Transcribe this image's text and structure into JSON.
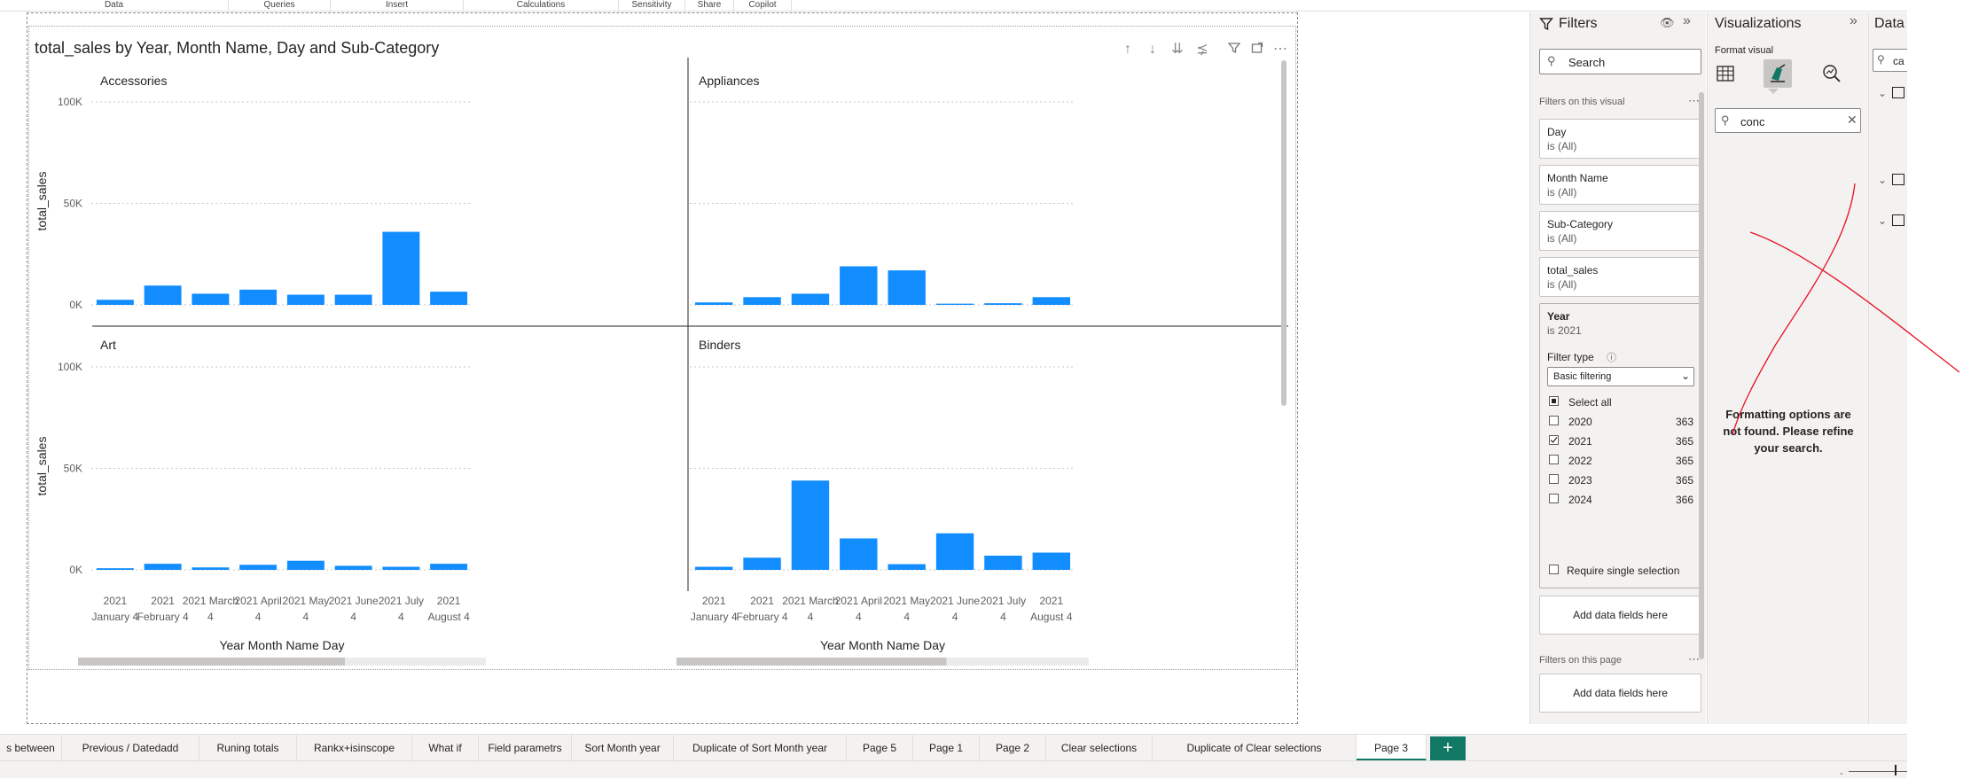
{
  "ribbon": {
    "groups": [
      "Data",
      "Queries",
      "Insert",
      "Calculations",
      "Sensitivity",
      "Share",
      "Copilot"
    ]
  },
  "visual": {
    "title": "total_sales by Year, Month Name, Day and Sub-Category",
    "icons": [
      "arrow-up-icon",
      "arrow-down-icon",
      "double-arrow-down-icon",
      "expand-hierarchy-icon",
      "filter-icon",
      "focus-mode-icon",
      "more-options-icon"
    ]
  },
  "chart_data": {
    "type": "bar",
    "title": "total_sales by Year, Month Name, Day and Sub-Category",
    "xlabel": "Year Month Name Day",
    "ylabel": "total_sales",
    "ylim": [
      0,
      100000
    ],
    "yticks": [
      "100K",
      "50K",
      "0K"
    ],
    "grid": true,
    "categories": [
      "2021 January 4",
      "2021 February 4",
      "2021 March 4",
      "2021 April 4",
      "2021 May 4",
      "2021 June 4",
      "2021 July 4",
      "2021 August 4"
    ],
    "series": [
      {
        "name": "Accessories",
        "values": [
          2500,
          9500,
          5500,
          7500,
          5000,
          5000,
          36000,
          6500
        ]
      },
      {
        "name": "Appliances",
        "values": [
          1200,
          3800,
          5500,
          19000,
          17000,
          600,
          800,
          3800
        ]
      },
      {
        "name": "Art",
        "values": [
          800,
          3000,
          1200,
          2500,
          4500,
          2000,
          1500,
          3000
        ]
      },
      {
        "name": "Binders",
        "values": [
          1500,
          6000,
          44000,
          15500,
          2800,
          18000,
          7000,
          8500
        ]
      }
    ],
    "bar_color": "#118dff"
  },
  "filters": {
    "title": "Filters",
    "search_placeholder": "Search",
    "on_visual_label": "Filters on this visual",
    "cards": [
      {
        "field": "Day",
        "state": "is (All)"
      },
      {
        "field": "Month Name",
        "state": "is (All)"
      },
      {
        "field": "Sub-Category",
        "state": "is (All)"
      },
      {
        "field": "total_sales",
        "state": "is (All)"
      }
    ],
    "year_card": {
      "field": "Year",
      "state": "is 2021",
      "filter_type_label": "Filter type",
      "filter_type_value": "Basic filtering",
      "select_all": "Select all",
      "options": [
        {
          "label": "2020",
          "count": "363",
          "checked": false
        },
        {
          "label": "2021",
          "count": "365",
          "checked": true
        },
        {
          "label": "2022",
          "count": "365",
          "checked": false
        },
        {
          "label": "2023",
          "count": "365",
          "checked": false
        },
        {
          "label": "2024",
          "count": "366",
          "checked": false
        }
      ],
      "require_single": "Require single selection"
    },
    "add_fields": "Add data fields here",
    "on_page_label": "Filters on this page",
    "add_fields_page": "Add data fields here"
  },
  "viz": {
    "title": "Visualizations",
    "format_visual": "Format visual",
    "search_value": "conc",
    "no_results": "Formatting options are not found. Please refine your search."
  },
  "data_pane": {
    "title": "Data",
    "search_value": "ca"
  },
  "tabs": [
    "s between",
    "Previous / Datedadd",
    "Runing totals",
    "Rankx+isinscope",
    "What if",
    "Field parametrs",
    "Sort Month year",
    "Duplicate of Sort Month year",
    "Page 5",
    "Page 1",
    "Page 2",
    "Clear selections",
    "Duplicate of Clear selections",
    "Page 3"
  ],
  "active_tab": "Page 3",
  "colors": {
    "accent": "#117865",
    "bar": "#118dff",
    "annotation": "#e81123"
  }
}
